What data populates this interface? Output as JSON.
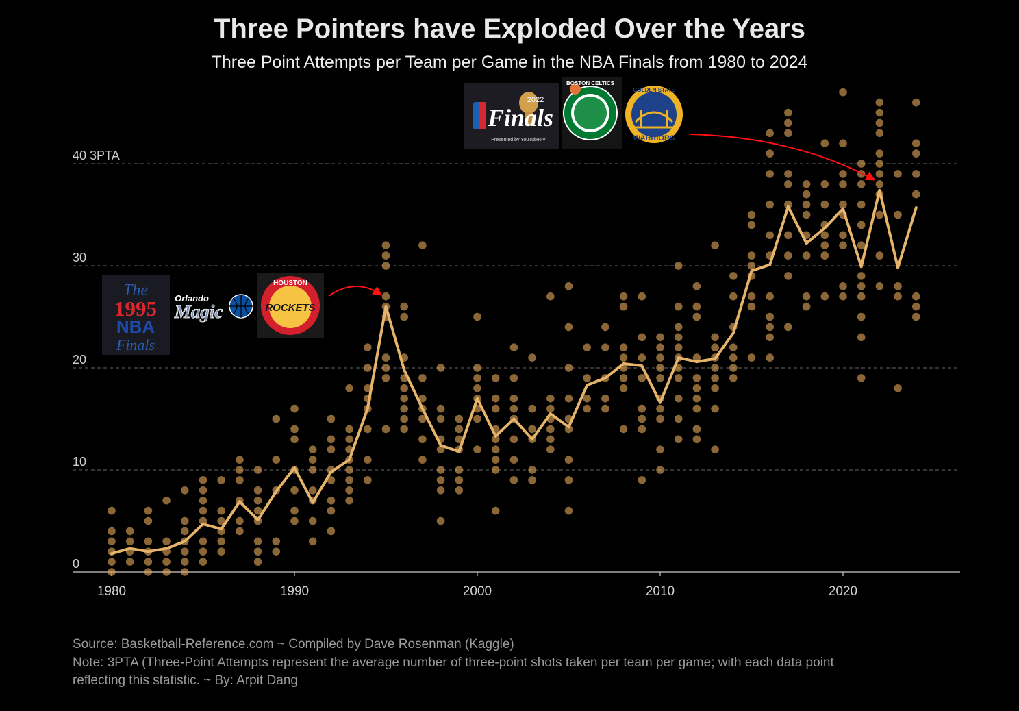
{
  "title": "Three Pointers have Exploded Over the Years",
  "subtitle": "Three Point Attempts per Team per Game in the NBA Finals from 1980 to 2024",
  "footer": {
    "source": "Source: Basketball-Reference.com   ~   Compiled by Dave Rosenman (Kaggle)",
    "note_line1": "Note:  3PTA (Three-Point Attempts represent the average number of three-point shots taken per team per game; with each data point",
    "note_line2": "reflecting this statistic.   ~   By: Arpit Dang"
  },
  "logos": {
    "finals_1995": {
      "line1": "The",
      "line2": "1995",
      "line3": "NBA",
      "line4": "Finals"
    },
    "magic": {
      "text1": "Orlando",
      "text2": "Magic"
    },
    "rockets": {
      "text1": "HOUSTON",
      "text2": "ROCKETS"
    },
    "finals_2022": {
      "year": "2022",
      "text": "Finals",
      "sponsor": "Presented by  YouTubeTV"
    },
    "celtics": {
      "text": "BOSTON CELTICS"
    },
    "warriors": {
      "text1": "GOLDEN STATE",
      "text2": "WARRIORS"
    }
  },
  "colors": {
    "line": "#e6b36b",
    "dot": "#e0a458",
    "arrow": "#ff1111",
    "grid": "#666666",
    "axis": "#cccccc",
    "text": "#cfcfcf"
  },
  "chart_data": {
    "type": "scatter",
    "title": "Three Pointers have Exploded Over the Years",
    "xlim": [
      1978,
      2026
    ],
    "ylim": [
      0,
      46
    ],
    "x_ticks": [
      1980,
      1990,
      2000,
      2010,
      2020
    ],
    "y_ticks": [
      {
        "value": 0,
        "label": "0"
      },
      {
        "value": 10,
        "label": "10"
      },
      {
        "value": 20,
        "label": "20"
      },
      {
        "value": 30,
        "label": "30"
      },
      {
        "value": 40,
        "label": "40 3PTA"
      }
    ],
    "grid": "horizontal-dashed",
    "average_line": {
      "years": [
        1980,
        1981,
        1982,
        1983,
        1984,
        1985,
        1986,
        1987,
        1988,
        1989,
        1990,
        1991,
        1992,
        1993,
        1994,
        1995,
        1996,
        1997,
        1998,
        1999,
        2000,
        2001,
        2002,
        2003,
        2004,
        2005,
        2006,
        2007,
        2008,
        2009,
        2010,
        2011,
        2012,
        2013,
        2014,
        2015,
        2016,
        2017,
        2018,
        2019,
        2020,
        2021,
        2022,
        2023,
        2024
      ],
      "values": [
        1.8,
        2.3,
        2.0,
        2.3,
        3.0,
        4.7,
        4.2,
        6.9,
        5.1,
        7.9,
        10.2,
        6.8,
        9.8,
        11.0,
        16.0,
        26.0,
        19.8,
        16.0,
        12.4,
        11.8,
        17.0,
        13.3,
        15.0,
        13.0,
        15.5,
        14.2,
        18.3,
        19.0,
        20.4,
        20.2,
        16.6,
        21.0,
        20.6,
        20.9,
        23.4,
        29.5,
        30.1,
        35.8,
        32.2,
        33.7,
        35.6,
        29.9,
        37.4,
        29.8,
        35.7
      ]
    },
    "game_points": [
      {
        "year": 1980,
        "values": [
          0,
          1,
          2,
          3,
          4,
          6
        ]
      },
      {
        "year": 1981,
        "values": [
          1,
          2,
          3,
          4
        ]
      },
      {
        "year": 1982,
        "values": [
          0,
          1,
          2,
          3,
          5,
          6
        ]
      },
      {
        "year": 1983,
        "values": [
          0,
          1,
          2,
          3,
          7
        ]
      },
      {
        "year": 1984,
        "values": [
          0,
          1,
          2,
          3,
          4,
          5,
          8
        ]
      },
      {
        "year": 1985,
        "values": [
          1,
          2,
          3,
          5,
          6,
          7,
          8,
          9
        ]
      },
      {
        "year": 1986,
        "values": [
          2,
          3,
          4,
          5,
          6,
          9
        ]
      },
      {
        "year": 1987,
        "values": [
          4,
          5,
          7,
          9,
          10,
          11
        ]
      },
      {
        "year": 1988,
        "values": [
          1,
          2,
          3,
          5,
          6,
          7,
          8,
          10
        ]
      },
      {
        "year": 1989,
        "values": [
          2,
          3,
          8,
          11,
          15
        ]
      },
      {
        "year": 1990,
        "values": [
          5,
          6,
          8,
          10,
          13,
          14,
          16
        ]
      },
      {
        "year": 1991,
        "values": [
          3,
          5,
          7,
          8,
          10,
          11,
          12
        ]
      },
      {
        "year": 1992,
        "values": [
          4,
          6,
          7,
          9,
          10,
          12,
          13,
          15
        ]
      },
      {
        "year": 1993,
        "values": [
          7,
          8,
          9,
          10,
          11,
          12,
          13,
          14,
          18
        ]
      },
      {
        "year": 1994,
        "values": [
          9,
          11,
          14,
          16,
          17,
          18,
          20,
          22
        ]
      },
      {
        "year": 1995,
        "values": [
          14,
          19,
          20,
          21,
          25,
          26,
          27,
          30,
          31,
          32
        ]
      },
      {
        "year": 1996,
        "values": [
          14,
          15,
          16,
          17,
          18,
          19,
          21,
          25,
          26
        ]
      },
      {
        "year": 1997,
        "values": [
          11,
          13,
          15,
          16,
          17,
          19,
          32
        ]
      },
      {
        "year": 1998,
        "values": [
          5,
          8,
          9,
          10,
          12,
          13,
          15,
          16,
          20
        ]
      },
      {
        "year": 1999,
        "values": [
          8,
          9,
          10,
          12,
          13,
          14,
          15
        ]
      },
      {
        "year": 2000,
        "values": [
          12,
          15,
          16,
          17,
          18,
          19,
          20,
          25
        ]
      },
      {
        "year": 2001,
        "values": [
          6,
          10,
          11,
          12,
          13,
          14,
          16,
          17,
          19
        ]
      },
      {
        "year": 2002,
        "values": [
          9,
          11,
          13,
          15,
          16,
          17,
          19,
          22
        ]
      },
      {
        "year": 2003,
        "values": [
          9,
          10,
          13,
          14,
          16,
          21
        ]
      },
      {
        "year": 2004,
        "values": [
          12,
          13,
          14,
          15,
          16,
          17,
          27
        ]
      },
      {
        "year": 2005,
        "values": [
          6,
          9,
          11,
          14,
          15,
          17,
          20,
          24,
          28
        ]
      },
      {
        "year": 2006,
        "values": [
          16,
          17,
          19,
          22
        ]
      },
      {
        "year": 2007,
        "values": [
          16,
          17,
          19,
          22,
          24
        ]
      },
      {
        "year": 2008,
        "values": [
          14,
          18,
          19,
          20,
          21,
          22,
          26,
          27
        ]
      },
      {
        "year": 2009,
        "values": [
          9,
          14,
          15,
          16,
          19,
          21,
          23,
          27
        ]
      },
      {
        "year": 2010,
        "values": [
          10,
          12,
          15,
          16,
          17,
          19,
          20,
          21,
          22,
          23
        ]
      },
      {
        "year": 2011,
        "values": [
          13,
          15,
          17,
          19,
          20,
          21,
          22,
          23,
          24,
          26,
          30
        ]
      },
      {
        "year": 2012,
        "values": [
          13,
          14,
          16,
          17,
          18,
          19,
          21,
          25,
          26,
          28
        ]
      },
      {
        "year": 2013,
        "values": [
          12,
          16,
          18,
          19,
          20,
          21,
          22,
          23,
          32
        ]
      },
      {
        "year": 2014,
        "values": [
          19,
          20,
          21,
          22,
          24,
          27,
          29
        ]
      },
      {
        "year": 2015,
        "values": [
          21,
          26,
          27,
          29,
          30,
          31,
          34,
          35
        ]
      },
      {
        "year": 2016,
        "values": [
          21,
          23,
          24,
          25,
          27,
          31,
          33,
          36,
          39,
          41,
          43
        ]
      },
      {
        "year": 2017,
        "values": [
          24,
          29,
          31,
          33,
          36,
          38,
          39,
          43,
          44,
          45
        ]
      },
      {
        "year": 2018,
        "values": [
          26,
          27,
          31,
          33,
          35,
          36,
          37,
          38
        ]
      },
      {
        "year": 2019,
        "values": [
          27,
          31,
          32,
          33,
          34,
          36,
          38,
          42
        ]
      },
      {
        "year": 2020,
        "values": [
          27,
          28,
          32,
          33,
          35,
          36,
          38,
          39,
          42,
          47
        ]
      },
      {
        "year": 2021,
        "values": [
          19,
          23,
          25,
          27,
          28,
          29,
          32,
          34,
          36,
          38,
          39,
          40
        ]
      },
      {
        "year": 2022,
        "values": [
          28,
          31,
          35,
          37,
          38,
          39,
          40,
          41,
          43,
          44,
          45,
          46
        ]
      },
      {
        "year": 2023,
        "values": [
          18,
          27,
          28,
          35,
          39
        ]
      },
      {
        "year": 2024,
        "values": [
          25,
          26,
          27,
          37,
          39,
          41,
          42,
          46
        ]
      }
    ],
    "annotations": [
      {
        "from_logos": "1995 Finals",
        "points_to_year": 1995
      },
      {
        "from_logos": "2022 Finals",
        "points_to_year": 2022
      }
    ]
  }
}
